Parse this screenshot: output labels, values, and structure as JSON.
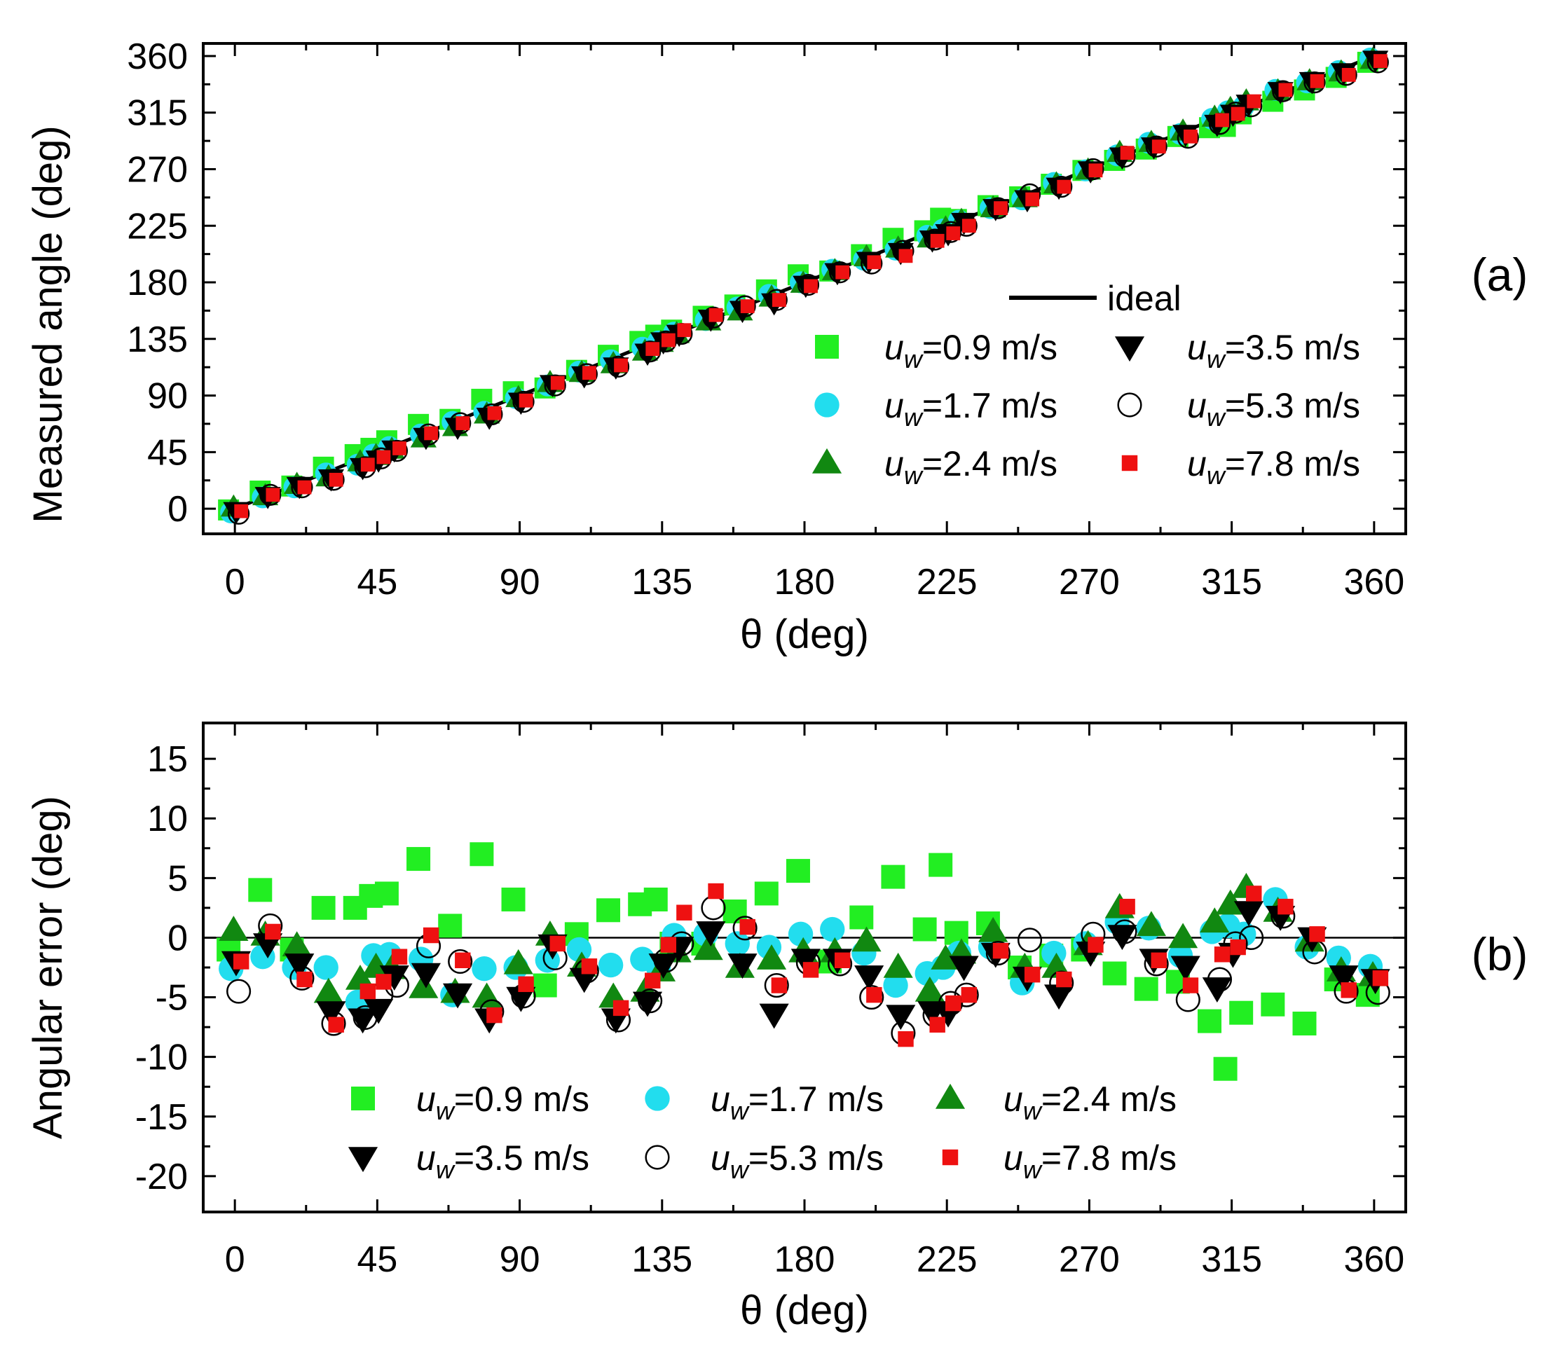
{
  "chart_data": [
    {
      "type": "scatter",
      "panel_label": "(a)",
      "xlabel": "θ (deg)",
      "ylabel": "Measured angle (deg)",
      "xlim": [
        -10,
        370
      ],
      "ylim": [
        -20,
        370
      ],
      "xticks": [
        0,
        45,
        90,
        135,
        180,
        225,
        270,
        315,
        360
      ],
      "yticks": [
        0,
        45,
        90,
        135,
        180,
        225,
        270,
        315,
        360
      ],
      "x": [
        0,
        10,
        20,
        30,
        40,
        45,
        50,
        60,
        70,
        80,
        90,
        100,
        110,
        120,
        130,
        135,
        140,
        150,
        160,
        170,
        180,
        190,
        200,
        210,
        220,
        225,
        230,
        240,
        250,
        260,
        270,
        280,
        290,
        300,
        310,
        315,
        320,
        330,
        340,
        350,
        360
      ],
      "ideal": {
        "name": "ideal",
        "x": [
          0,
          360
        ],
        "y": [
          0,
          360
        ]
      },
      "series": [
        {
          "name": "u",
          "subscript": "w",
          "value_text": "=0.9 m/s",
          "marker": "square",
          "color": "#22ee22",
          "values": [
            -1,
            14,
            18,
            33,
            43,
            48,
            54,
            67,
            71,
            87,
            93,
            96,
            110,
            122,
            133,
            138,
            142,
            153,
            162,
            174,
            186,
            189,
            202,
            215,
            221,
            231,
            230,
            241,
            248,
            258,
            269,
            277,
            286,
            296,
            303,
            304,
            314,
            324,
            333,
            343,
            355
          ]
        },
        {
          "name": "u",
          "subscript": "w",
          "value_text": "=1.7 m/s",
          "marker": "circle",
          "color": "#22ddee",
          "values": [
            -3,
            9,
            17,
            28,
            35,
            43,
            49,
            59,
            69,
            77,
            88,
            98,
            109,
            118,
            128,
            133,
            140,
            150,
            160,
            170,
            180,
            190,
            198,
            206,
            217,
            222,
            229,
            239,
            246,
            259,
            269,
            281,
            291,
            298,
            310,
            316,
            320,
            333,
            339,
            348,
            358
          ]
        },
        {
          "name": "u",
          "subscript": "w",
          "value_text": "=2.4 m/s",
          "marker": "triangle-up",
          "color": "#118811",
          "values": [
            1,
            10,
            19,
            25,
            37,
            42,
            47,
            56,
            65,
            75,
            88,
            100,
            108,
            115,
            125,
            132,
            139,
            149,
            157,
            168,
            179,
            189,
            200,
            207,
            215,
            223,
            229,
            239,
            247,
            258,
            269,
            283,
            291,
            300,
            311,
            318,
            324,
            332,
            340,
            347,
            357
          ]
        },
        {
          "name": "u",
          "subscript": "w",
          "value_text": "=3.5 m/s",
          "marker": "triangle-down",
          "color": "#000000",
          "values": [
            -2,
            10,
            18,
            24,
            33,
            39,
            47,
            57,
            65,
            73,
            85,
            99,
            106,
            113,
            124,
            133,
            139,
            151,
            158,
            164,
            178,
            188,
            197,
            204,
            214,
            219,
            228,
            239,
            246,
            256,
            269,
            280,
            288,
            298,
            306,
            314,
            322,
            332,
            340,
            347,
            357
          ]
        },
        {
          "name": "u",
          "subscript": "w",
          "value_text": "=5.3 m/s",
          "marker": "circle-open",
          "color": "#000000",
          "values": [
            -4,
            11,
            17,
            23,
            33,
            40,
            46,
            59,
            68,
            75,
            85,
            98,
            107,
            113,
            125,
            133,
            139,
            152,
            161,
            166,
            178,
            188,
            195,
            205,
            214,
            220,
            225,
            239,
            250,
            256,
            270,
            280,
            288,
            295,
            306,
            315,
            320,
            332,
            339,
            345,
            355
          ]
        },
        {
          "name": "u",
          "subscript": "w",
          "value_text": "=7.8 m/s",
          "marker": "square-small",
          "color": "#ee1111",
          "values": [
            -2,
            11,
            17,
            23,
            35,
            41,
            48,
            60,
            68,
            76,
            86,
            100,
            108,
            114,
            127,
            134,
            142,
            154,
            161,
            166,
            177,
            188,
            196,
            201,
            213,
            219,
            225,
            239,
            246,
            256,
            269,
            283,
            288,
            296,
            309,
            314,
            324,
            333,
            340,
            345,
            356
          ]
        }
      ],
      "legend": {
        "position": "bottom-right",
        "columns": 2
      }
    },
    {
      "type": "scatter",
      "panel_label": "(b)",
      "xlabel": "θ (deg)",
      "ylabel": "Angular error (deg)",
      "xlim": [
        -10,
        370
      ],
      "ylim": [
        -23,
        18
      ],
      "xticks": [
        0,
        45,
        90,
        135,
        180,
        225,
        270,
        315,
        360
      ],
      "yticks": [
        15,
        10,
        5,
        0,
        -5,
        -10,
        -15,
        -20
      ],
      "x": [
        0,
        10,
        20,
        30,
        40,
        45,
        50,
        60,
        70,
        80,
        90,
        100,
        110,
        120,
        130,
        135,
        140,
        150,
        160,
        170,
        180,
        190,
        200,
        210,
        220,
        225,
        230,
        240,
        250,
        260,
        270,
        280,
        290,
        300,
        310,
        315,
        320,
        330,
        340,
        350,
        360
      ],
      "zero_line": 0,
      "series": [
        {
          "name": "u",
          "subscript": "w",
          "value_text": "=0.9 m/s",
          "marker": "square",
          "color": "#22ee22",
          "values": [
            -1,
            4,
            -1,
            2.5,
            2.5,
            3.5,
            3.7,
            6.6,
            1,
            7,
            3.2,
            -4,
            0.3,
            2.3,
            2.8,
            3.2,
            -0.5,
            -0.5,
            2.2,
            3.7,
            5.6,
            -2,
            1.7,
            5.1,
            0.7,
            6.1,
            0.4,
            1.2,
            -2.5,
            -1.5,
            -1,
            -3,
            -4.3,
            -3.7,
            -7,
            -11,
            -6.3,
            -5.6,
            -7.2,
            -3.5,
            -4.8
          ]
        },
        {
          "name": "u",
          "subscript": "w",
          "value_text": "=1.7 m/s",
          "marker": "circle",
          "color": "#22ddee",
          "values": [
            -2.6,
            -1.6,
            -2.5,
            -2.5,
            -5.4,
            -1.5,
            -1.4,
            -1.8,
            -4.8,
            -2.6,
            -2.5,
            -1.9,
            -1,
            -2.3,
            -1.8,
            -2.5,
            0.2,
            0.3,
            -0.5,
            -0.8,
            0.3,
            0.7,
            -1.3,
            -4,
            -3,
            -2.5,
            -1.3,
            -0.8,
            -3.8,
            -1.3,
            -0.5,
            1.3,
            0.8,
            -1.5,
            0.5,
            1,
            0.3,
            3.2,
            -0.8,
            -1.7,
            -2.4
          ]
        },
        {
          "name": "u",
          "subscript": "w",
          "value_text": "=2.4 m/s",
          "marker": "triangle-up",
          "color": "#118811",
          "values": [
            0.6,
            0.2,
            -0.7,
            -4.6,
            -3.5,
            -2.5,
            -2.6,
            -4.2,
            -4.6,
            -5,
            -2.2,
            0.2,
            -2.4,
            -5,
            -4.5,
            -2.8,
            -1.2,
            -1,
            -2.5,
            -1.8,
            -1.2,
            -1.2,
            -0.3,
            -2.5,
            -4.5,
            -1.8,
            -1.3,
            0.5,
            -2.5,
            -2.5,
            -0.6,
            2.5,
            1,
            0,
            1.3,
            2.8,
            4.2,
            2.2,
            -0.3,
            -2.8,
            -3.2
          ]
        },
        {
          "name": "u",
          "subscript": "w",
          "value_text": "=3.5 m/s",
          "marker": "triangle-down",
          "color": "#000000",
          "values": [
            -2,
            -0.5,
            -2.2,
            -6.2,
            -6.8,
            -6,
            -3.2,
            -3,
            -4.7,
            -6.8,
            -5,
            -0.6,
            -3.4,
            -6.8,
            -5.4,
            -2.2,
            -0.8,
            0.5,
            -2.2,
            -6.4,
            -1.8,
            -1.8,
            -3.2,
            -6.5,
            -6.2,
            -6.3,
            -2.4,
            -1.3,
            -3.3,
            -4.8,
            -1.2,
            0.2,
            -1.8,
            -2.4,
            -4.2,
            -1.3,
            2.2,
            1.8,
            0,
            -3.2,
            -3.5
          ]
        },
        {
          "name": "u",
          "subscript": "w",
          "value_text": "=5.3 m/s",
          "marker": "circle-open",
          "color": "#000000",
          "values": [
            -4.5,
            1,
            -3.4,
            -7.2,
            -6.7,
            -4.8,
            -4,
            -0.7,
            -2,
            -6.2,
            -4.9,
            -1.7,
            -2.8,
            -6.9,
            -5.3,
            -1.9,
            -0.5,
            2.5,
            0.8,
            -4,
            -2.1,
            -2.2,
            -5,
            -8,
            -6.5,
            -5.5,
            -4.8,
            -1.3,
            -0.2,
            -3.8,
            0.3,
            0.5,
            -2.2,
            -5.2,
            -3.5,
            -0.5,
            0,
            1.8,
            -1.2,
            -4.5,
            -4.6
          ]
        },
        {
          "name": "u",
          "subscript": "w",
          "value_text": "=7.8 m/s",
          "marker": "square-small",
          "color": "#ee1111",
          "values": [
            -2,
            0.5,
            -3.5,
            -7.3,
            -4.5,
            -3.7,
            -1.6,
            0.2,
            -1.9,
            -6.5,
            -3.9,
            -0.5,
            -2.4,
            -5.9,
            -3.6,
            -0.6,
            2.1,
            3.9,
            0.9,
            -4,
            -2.7,
            -1.9,
            -4.8,
            -8.5,
            -7.3,
            -5.5,
            -4.8,
            -1.1,
            -3.1,
            -3.5,
            -0.6,
            2.6,
            -1.9,
            -4,
            -1.4,
            -0.8,
            3.7,
            2.6,
            0.3,
            -4.4,
            -3.4
          ]
        }
      ],
      "legend": {
        "position": "bottom",
        "columns": 3
      }
    }
  ]
}
